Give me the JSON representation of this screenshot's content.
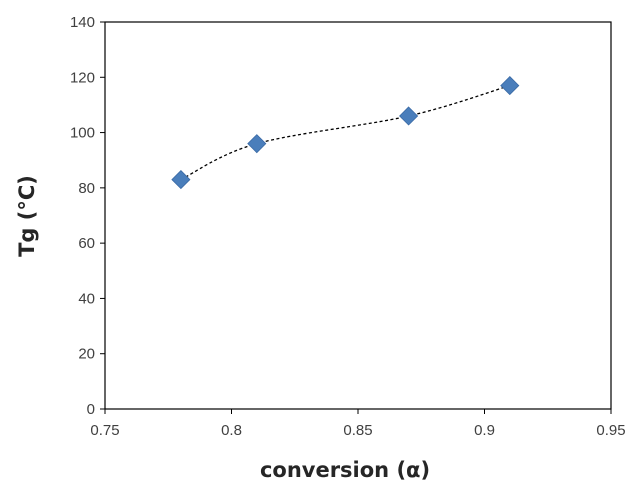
{
  "chart_data": {
    "type": "scatter",
    "title": "",
    "xlabel": "conversion (α)",
    "ylabel": "Tg (°C)",
    "xlim": [
      0.75,
      0.95
    ],
    "ylim": [
      0,
      140
    ],
    "x_ticks": [
      "0.75",
      "0.8",
      "0.85",
      "0.9",
      "0.95"
    ],
    "y_ticks": [
      "0",
      "20",
      "40",
      "60",
      "80",
      "100",
      "120",
      "140"
    ],
    "grid": false,
    "legend": "none",
    "marker": "diamond",
    "marker_color": "#4a7ebb",
    "trendline": "dotted smooth curve",
    "series": [
      {
        "x": [
          0.78,
          0.81,
          0.87,
          0.91
        ],
        "y": [
          83,
          96,
          106,
          117
        ]
      }
    ]
  }
}
